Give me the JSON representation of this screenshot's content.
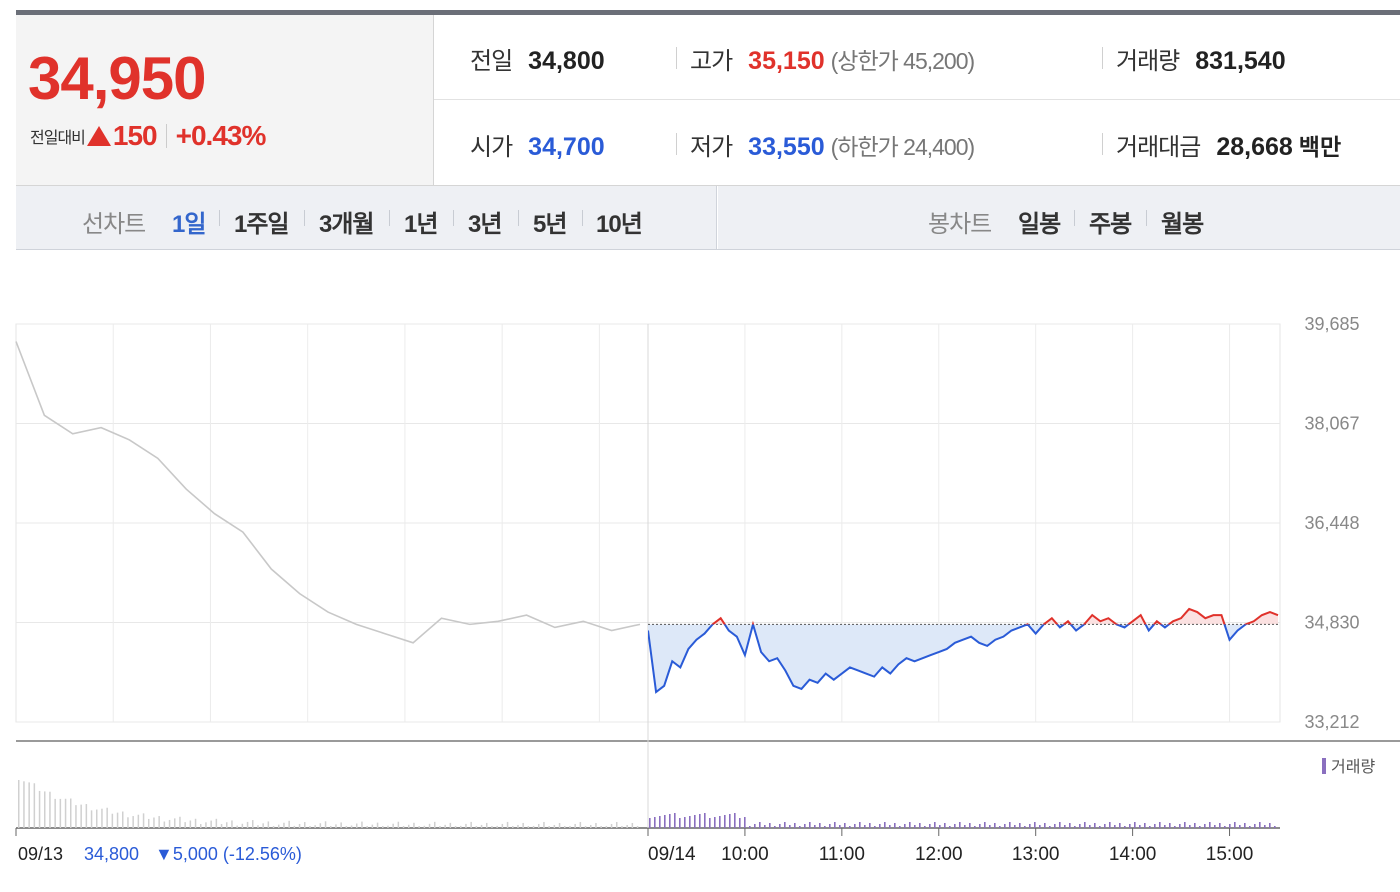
{
  "quote": {
    "price": "34,950",
    "change_label": "전일대비",
    "change": "150",
    "change_pct": "+0.43%",
    "up_color": "#e0322b",
    "down_color": "#2a5bd7"
  },
  "info": {
    "prev_close": {
      "label": "전일",
      "value": "34,800"
    },
    "high": {
      "label": "고가",
      "value": "35,150",
      "limit_label": "(상한가 45,200)"
    },
    "volume": {
      "label": "거래량",
      "value": "831,540"
    },
    "open": {
      "label": "시가",
      "value": "34,700"
    },
    "low": {
      "label": "저가",
      "value": "33,550",
      "limit_label": "(하한가 24,400)"
    },
    "amount": {
      "label": "거래대금",
      "value": "28,668",
      "unit": "백만"
    }
  },
  "tabs": {
    "line_chart_label": "선차트",
    "line_periods": [
      "1일",
      "1주일",
      "3개월",
      "1년",
      "3년",
      "5년",
      "10년"
    ],
    "active_period": "1일",
    "candle_chart_label": "봉차트",
    "candle_periods": [
      "일봉",
      "주봉",
      "월봉"
    ]
  },
  "chart_data": {
    "type": "line",
    "y_ticks": [
      "39,685",
      "38,067",
      "36,448",
      "34,830",
      "33,212"
    ],
    "ylim": [
      33212,
      39685
    ],
    "reference_price": 34800,
    "x_ticks": [
      "09/14",
      "10:00",
      "11:00",
      "12:00",
      "13:00",
      "14:00",
      "15:00"
    ],
    "prev_day": {
      "date_label": "09/13",
      "close_label": "34,800",
      "change_label": "▼5,000 (-12.56%)",
      "color": "#c8c8c8",
      "x": [
        0,
        3,
        6,
        9,
        12,
        15,
        18,
        21,
        24,
        27,
        30,
        33,
        36,
        39,
        42,
        45,
        48,
        51,
        54,
        57,
        60,
        63,
        66
      ],
      "values": [
        39400,
        38200,
        37900,
        38000,
        37800,
        37500,
        37000,
        36600,
        36300,
        35700,
        35300,
        35000,
        34800,
        34650,
        34500,
        34900,
        34800,
        34850,
        34950,
        34750,
        34850,
        34700,
        34800
      ]
    },
    "today": {
      "x": [
        "09:00",
        "09:05",
        "09:10",
        "09:15",
        "09:20",
        "09:25",
        "09:30",
        "09:35",
        "09:40",
        "09:45",
        "09:50",
        "09:55",
        "10:00",
        "10:05",
        "10:10",
        "10:15",
        "10:20",
        "10:25",
        "10:30",
        "10:35",
        "10:40",
        "10:45",
        "10:50",
        "10:55",
        "11:00",
        "11:05",
        "11:10",
        "11:15",
        "11:20",
        "11:25",
        "11:30",
        "11:35",
        "11:40",
        "11:45",
        "11:50",
        "11:55",
        "12:00",
        "12:05",
        "12:10",
        "12:15",
        "12:20",
        "12:25",
        "12:30",
        "12:35",
        "12:40",
        "12:45",
        "12:50",
        "12:55",
        "13:00",
        "13:05",
        "13:10",
        "13:15",
        "13:20",
        "13:25",
        "13:30",
        "13:35",
        "13:40",
        "13:45",
        "13:50",
        "13:55",
        "14:00",
        "14:05",
        "14:10",
        "14:15",
        "14:20",
        "14:25",
        "14:30",
        "14:35",
        "14:40",
        "14:45",
        "14:50",
        "14:55",
        "15:00",
        "15:05",
        "15:10",
        "15:15",
        "15:20",
        "15:25",
        "15:30"
      ],
      "values": [
        34700,
        33700,
        33800,
        34200,
        34100,
        34400,
        34550,
        34650,
        34800,
        34900,
        34700,
        34600,
        34300,
        34800,
        34350,
        34200,
        34250,
        34050,
        33800,
        33750,
        33900,
        33850,
        34000,
        33900,
        34000,
        34100,
        34050,
        34000,
        33950,
        34100,
        34000,
        34150,
        34250,
        34200,
        34250,
        34300,
        34350,
        34400,
        34500,
        34550,
        34600,
        34500,
        34450,
        34550,
        34600,
        34700,
        34750,
        34800,
        34650,
        34800,
        34900,
        34750,
        34850,
        34700,
        34800,
        34950,
        34850,
        34900,
        34800,
        34750,
        34850,
        34950,
        34700,
        34850,
        34750,
        34850,
        34900,
        35050,
        35000,
        34900,
        34950,
        34950,
        34550,
        34700,
        34800,
        34850,
        34950,
        35000,
        34950
      ]
    },
    "volume": {
      "legend_label": "거래량",
      "color": "#8a6fbf",
      "prev_color": "#d0d0d0"
    },
    "grid": true,
    "legend_placement": "top-right"
  }
}
